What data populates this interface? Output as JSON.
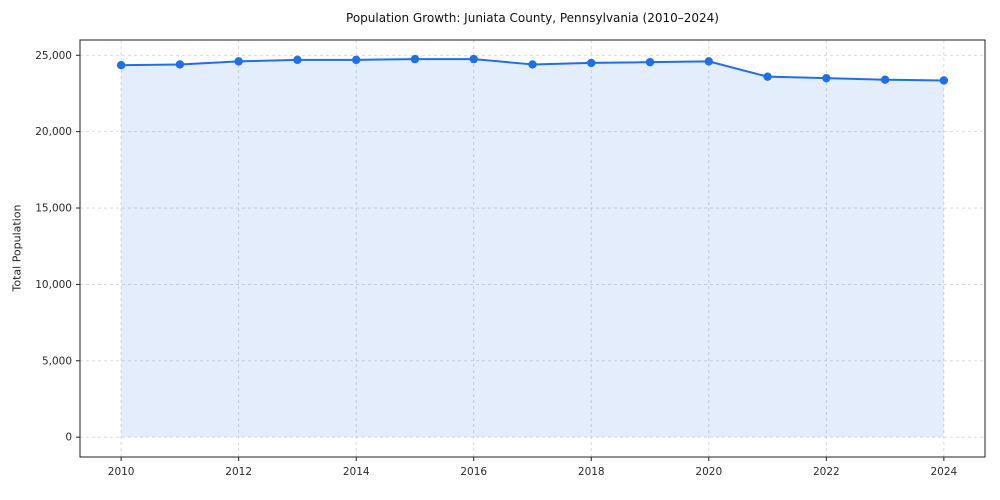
{
  "chart_data": {
    "type": "line",
    "title": "Population Growth: Juniata County, Pennsylvania (2010–2024)",
    "xlabel": "",
    "ylabel": "Total Population",
    "series_name": "Total Population",
    "x": [
      2010,
      2011,
      2012,
      2013,
      2014,
      2015,
      2016,
      2017,
      2018,
      2019,
      2020,
      2021,
      2022,
      2023,
      2024
    ],
    "values": [
      24350,
      24400,
      24600,
      24700,
      24700,
      24750,
      24750,
      24400,
      24500,
      24550,
      24600,
      23600,
      23500,
      23400,
      23350
    ],
    "xlim": [
      2010,
      2024
    ],
    "ylim": [
      0,
      26000
    ],
    "xticks": {
      "values": [
        2010,
        2012,
        2014,
        2016,
        2018,
        2020,
        2022,
        2024
      ],
      "labels": [
        "2010",
        "2012",
        "2014",
        "2016",
        "2018",
        "2020",
        "2022",
        "2024"
      ]
    },
    "yticks": {
      "values": [
        0,
        5000,
        10000,
        15000,
        20000,
        25000
      ],
      "labels": [
        "0",
        "5,000",
        "10,000",
        "15,000",
        "20,000",
        "25,000"
      ]
    },
    "grid": true,
    "grid_style": "dashed",
    "legend": "none",
    "line_color": "#1f6fe8",
    "fill_color": "#1f6fe8",
    "fill_opacity": 0.12,
    "marker": "circle",
    "grid_color": "#d5d5d5",
    "spine_color": "#222222",
    "tick_color": "#2b2b2b"
  }
}
